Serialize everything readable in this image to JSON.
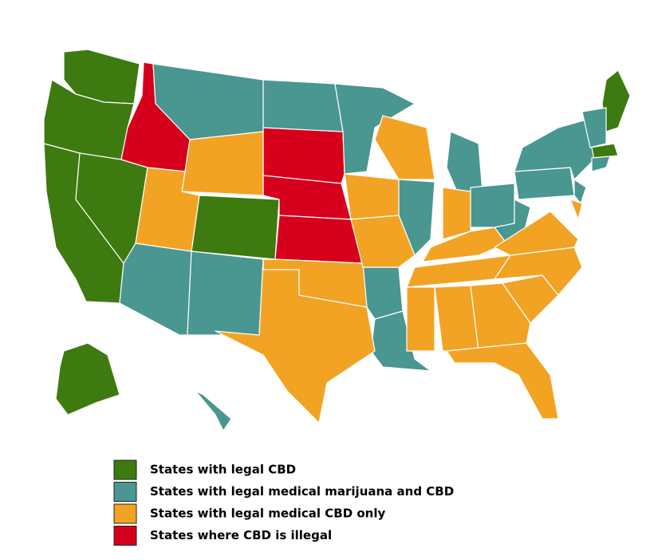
{
  "legend": {
    "items": [
      {
        "label": "States with legal CBD",
        "color": "#3d7a0f"
      },
      {
        "label": "States with legal medical marijuana and CBD",
        "color": "#4a9690"
      },
      {
        "label": "States with legal medical CBD only",
        "color": "#f2a324"
      },
      {
        "label": "States where CBD is illegal",
        "color": "#d6001c"
      }
    ]
  }
}
